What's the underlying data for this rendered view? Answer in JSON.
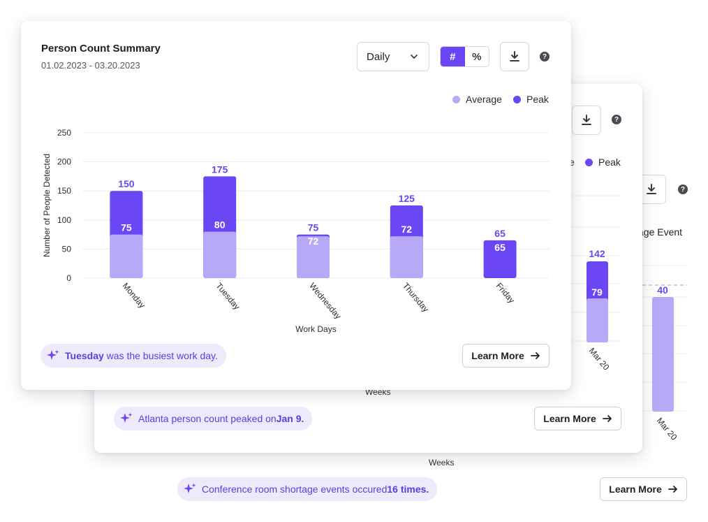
{
  "colors": {
    "peak": "#6a46f5",
    "average": "#b8a9f8",
    "accent": "#6a46f5",
    "insight_bg": "#eeeafc",
    "insight_text": "#5a3de0"
  },
  "icons": {
    "download": "download-icon",
    "help": "help-icon",
    "chevron": "chevron-down-icon",
    "sparkle": "sparkle-icon",
    "arrow": "arrow-right-icon"
  },
  "back_card": {
    "partial_legend_label": "age Event",
    "bar_value": "40",
    "category_label": "Mar 20",
    "xlabel": "Weeks",
    "insight": {
      "prefix": "Conference room shortage events occured ",
      "highlight": "16 times."
    },
    "learn_more": "Learn More",
    "help_symbol": "?"
  },
  "mid_card": {
    "legend_partial": "e",
    "legend_peak": "Peak",
    "bar_peak_value": "142",
    "bar_average_value": "79",
    "category_label": "Mar 20",
    "xlabel": "Weeks",
    "insight": {
      "prefix": "Atlanta person count peaked on ",
      "highlight": "Jan 9."
    },
    "learn_more": "Learn More",
    "help_symbol": "?"
  },
  "front_card": {
    "title": "Person Count Summary",
    "date_range": "01.02.2023 - 03.20.2023",
    "period_select": "Daily",
    "toggle": {
      "count": "#",
      "percent": "%"
    },
    "help_symbol": "?",
    "insight": {
      "highlight": "Tuesday",
      "suffix": " was the busiest work day."
    },
    "learn_more": "Learn More"
  },
  "chart_data": {
    "type": "bar",
    "title": "",
    "xlabel": "Work Days",
    "ylabel": "Number of People Detected",
    "categories": [
      "Monday",
      "Tuesday",
      "Wednesday",
      "Thursday",
      "Friday"
    ],
    "series": [
      {
        "name": "Average",
        "values": [
          75,
          80,
          72,
          72,
          65
        ]
      },
      {
        "name": "Peak",
        "values": [
          150,
          175,
          75,
          125,
          65
        ]
      }
    ],
    "ylim": [
      0,
      250
    ],
    "yticks": [
      0,
      50,
      100,
      150,
      200,
      250
    ],
    "grid": true,
    "legend": "top-right"
  }
}
